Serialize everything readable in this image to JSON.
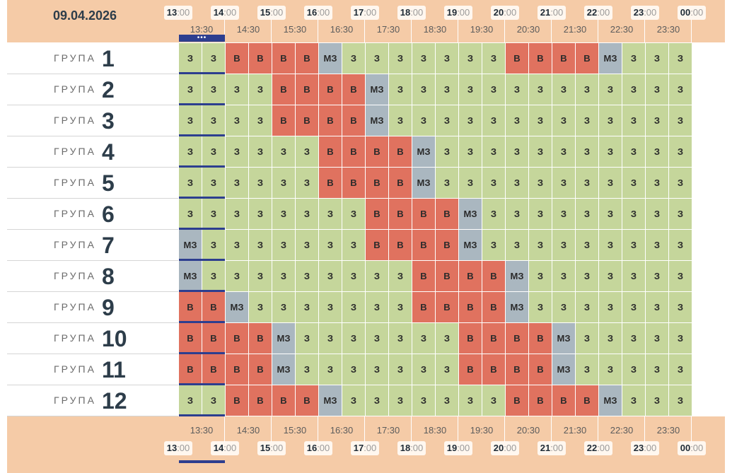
{
  "date": "09.04.2026",
  "hour_labels": [
    {
      "h": "13",
      "m": ":00"
    },
    {
      "h": "14",
      "m": ":00"
    },
    {
      "h": "15",
      "m": ":00"
    },
    {
      "h": "16",
      "m": ":00"
    },
    {
      "h": "17",
      "m": ":00"
    },
    {
      "h": "18",
      "m": ":00"
    },
    {
      "h": "19",
      "m": ":00"
    },
    {
      "h": "20",
      "m": ":00"
    },
    {
      "h": "21",
      "m": ":00"
    },
    {
      "h": "22",
      "m": ":00"
    },
    {
      "h": "23",
      "m": ":00"
    },
    {
      "h": "00",
      "m": ":00"
    }
  ],
  "half_labels": [
    "13:30",
    "14:30",
    "15:30",
    "16:30",
    "17:30",
    "18:30",
    "19:30",
    "20:30",
    "21:30",
    "22:30",
    "23:30"
  ],
  "group_word": "ГРУПА",
  "now_indicator": "•••",
  "legend_codes": {
    "z": "З",
    "v": "В",
    "m": "МЗ"
  },
  "colors": {
    "z": "#c5d69b",
    "v": "#e0725f",
    "m": "#aab7c0",
    "band": "#f5cba7",
    "now": "#2d3e8f"
  },
  "groups": [
    {
      "num": "1",
      "cells": "zzvvvvmzzzzzzzvvvvmzzz"
    },
    {
      "num": "2",
      "cells": "zzzzvvvvmzzzzzzzzzzzzz"
    },
    {
      "num": "3",
      "cells": "zzzzvvvvmzzzzzzzzzzzzz"
    },
    {
      "num": "4",
      "cells": "zzzzzzvvvvmzzzzzzzzzzz"
    },
    {
      "num": "5",
      "cells": "zzzzzzvvvvmzzzzzzzzzzz"
    },
    {
      "num": "6",
      "cells": "zzzzzzzzvvvvmzzzzzzzzz"
    },
    {
      "num": "7",
      "cells": "mzzzzzzzvvvvmzzzzzzzzz"
    },
    {
      "num": "8",
      "cells": "mzzzzzzzzzvvvvmzzzzzzz"
    },
    {
      "num": "9",
      "cells": "vvmzzzzzzzvvvvmzzzzzzz"
    },
    {
      "num": "10",
      "cells": "vvvvmzzzzzzzvvvvmzzzzz"
    },
    {
      "num": "11",
      "cells": "vvvvmzzzzzzzvvvvmzzzzz"
    },
    {
      "num": "12",
      "cells": "zzvvvvmzzzzzzzvvvvmzzz"
    }
  ]
}
